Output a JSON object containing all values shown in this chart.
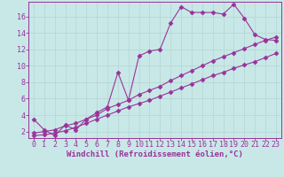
{
  "bg_color": "#c8e8e8",
  "line_color": "#993399",
  "grid_color": "#b8d8d8",
  "xlabel": "Windchill (Refroidissement éolien,°C)",
  "ylabel_ticks": [
    2,
    4,
    6,
    8,
    10,
    12,
    14,
    16
  ],
  "xlim": [
    -0.5,
    23.5
  ],
  "ylim": [
    1.2,
    17.8
  ],
  "xticks": [
    0,
    1,
    2,
    3,
    4,
    5,
    6,
    7,
    8,
    9,
    10,
    11,
    12,
    13,
    14,
    15,
    16,
    17,
    18,
    19,
    20,
    21,
    22,
    23
  ],
  "line1_x": [
    0,
    1,
    2,
    3,
    4,
    5,
    6,
    7,
    8,
    9,
    10,
    11,
    12,
    13,
    14,
    15,
    16,
    17,
    18,
    19,
    20,
    21,
    22,
    23
  ],
  "line1_y": [
    3.5,
    2.2,
    1.5,
    2.8,
    2.2,
    3.5,
    4.3,
    5.0,
    9.2,
    5.8,
    11.2,
    11.8,
    12.0,
    15.2,
    17.2,
    16.5,
    16.5,
    16.5,
    16.3,
    17.5,
    15.8,
    13.8,
    13.2,
    13.1
  ],
  "line2_x": [
    0,
    1,
    2,
    3,
    4,
    5,
    6,
    7,
    8,
    9,
    10,
    11,
    12,
    13,
    14,
    15,
    16,
    17,
    18,
    19,
    20,
    21,
    22,
    23
  ],
  "line2_y": [
    1.8,
    2.0,
    2.2,
    2.7,
    3.0,
    3.5,
    4.0,
    4.8,
    5.3,
    5.8,
    6.5,
    7.0,
    7.5,
    8.2,
    8.8,
    9.4,
    10.0,
    10.6,
    11.1,
    11.6,
    12.1,
    12.6,
    13.1,
    13.5
  ],
  "line3_x": [
    0,
    1,
    2,
    3,
    4,
    5,
    6,
    7,
    8,
    9,
    10,
    11,
    12,
    13,
    14,
    15,
    16,
    17,
    18,
    19,
    20,
    21,
    22,
    23
  ],
  "line3_y": [
    1.5,
    1.6,
    1.8,
    2.1,
    2.5,
    3.0,
    3.5,
    4.0,
    4.5,
    5.0,
    5.4,
    5.8,
    6.3,
    6.8,
    7.3,
    7.8,
    8.3,
    8.8,
    9.2,
    9.7,
    10.1,
    10.5,
    11.0,
    11.5
  ],
  "marker": "D",
  "markersize": 2.5,
  "linewidth": 0.8,
  "xlabel_fontsize": 6.5,
  "tick_fontsize": 6.0
}
